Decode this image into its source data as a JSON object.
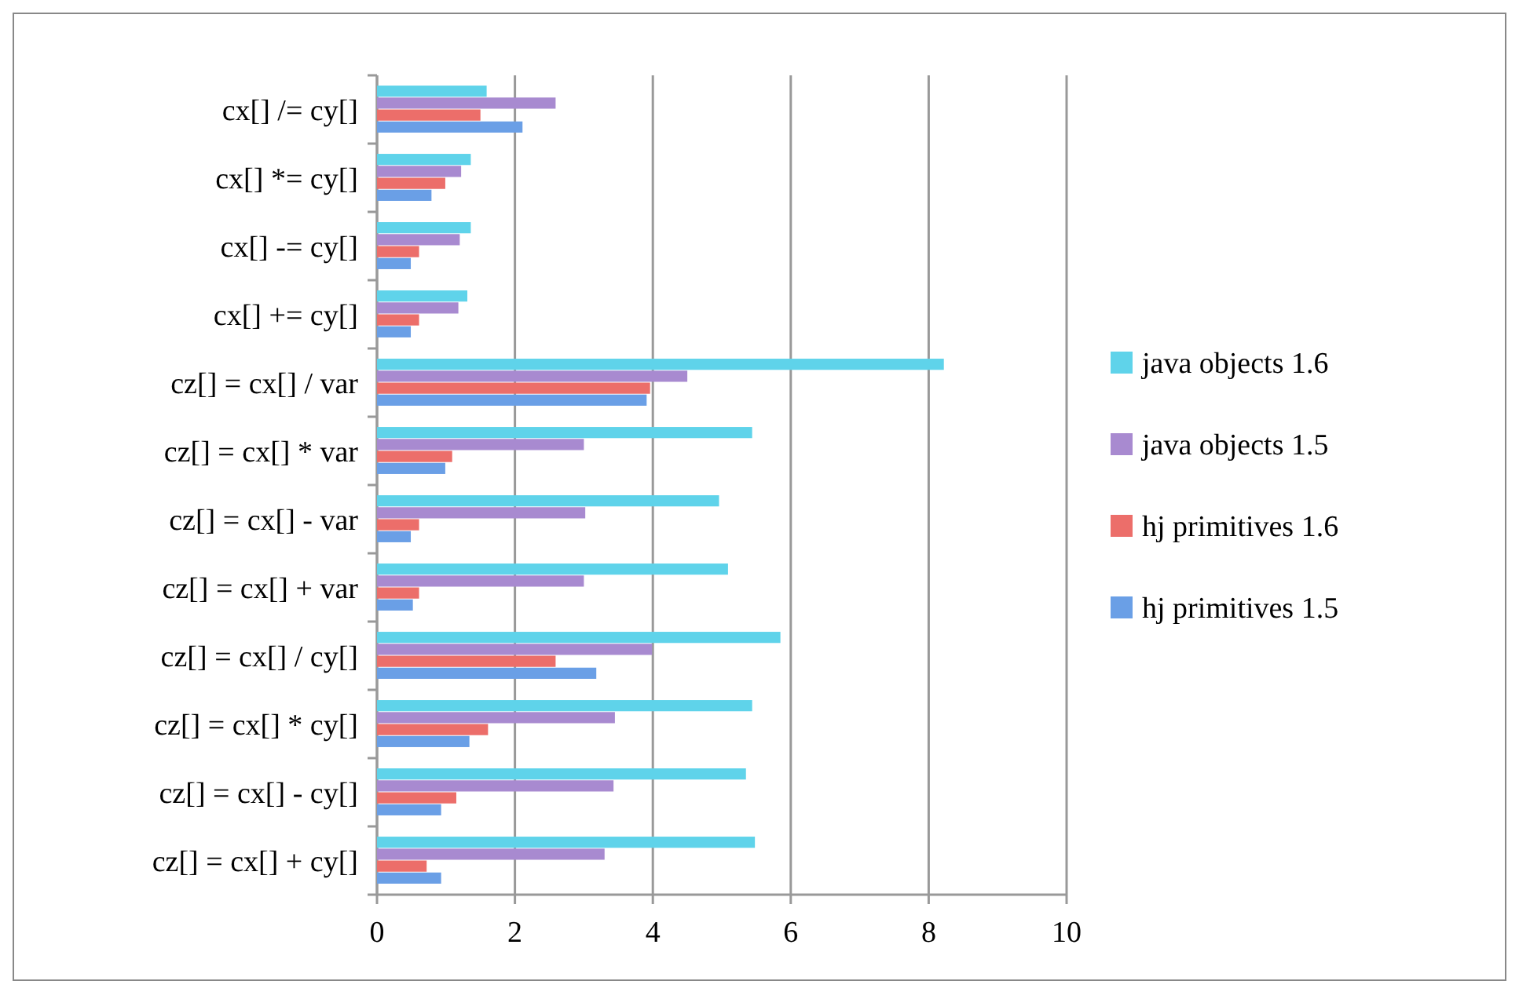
{
  "chart_data": {
    "type": "bar",
    "orientation": "horizontal",
    "categories": [
      "cx[] /= cy[]",
      "cx[] *= cy[]",
      "cx[] -= cy[]",
      "cx[] += cy[]",
      "cz[] = cx[] / var",
      "cz[] = cx[] * var",
      "cz[] = cx[] - var",
      "cz[] = cx[] + var",
      "cz[] = cx[] / cy[]",
      "cz[] = cx[] * cy[]",
      "cz[] = cx[] - cy[]",
      "cz[] = cx[] + cy[]"
    ],
    "series": [
      {
        "name": "hj primitives 1.5",
        "color": "#6a9fe6",
        "values": [
          2.11,
          0.79,
          0.49,
          0.49,
          3.91,
          0.99,
          0.49,
          0.52,
          3.18,
          1.34,
          0.93,
          0.93
        ]
      },
      {
        "name": "hj primitives 1.6",
        "color": "#ec6e6a",
        "values": [
          1.5,
          0.99,
          0.61,
          0.61,
          3.96,
          1.09,
          0.61,
          0.61,
          2.59,
          1.61,
          1.15,
          0.72
        ]
      },
      {
        "name": "java objects 1.5",
        "color": "#a88ad0",
        "values": [
          2.59,
          1.22,
          1.2,
          1.18,
          4.5,
          3.0,
          3.02,
          3.0,
          3.99,
          3.45,
          3.43,
          3.3
        ]
      },
      {
        "name": "java objects 1.6",
        "color": "#5fd3ea",
        "values": [
          1.59,
          1.36,
          1.36,
          1.31,
          8.22,
          5.44,
          4.96,
          5.09,
          5.85,
          5.44,
          5.35,
          5.48
        ]
      }
    ],
    "xlim": [
      0,
      10
    ],
    "xticks": [
      0,
      2,
      4,
      6,
      8,
      10
    ],
    "grid": "x",
    "legend": "right"
  }
}
